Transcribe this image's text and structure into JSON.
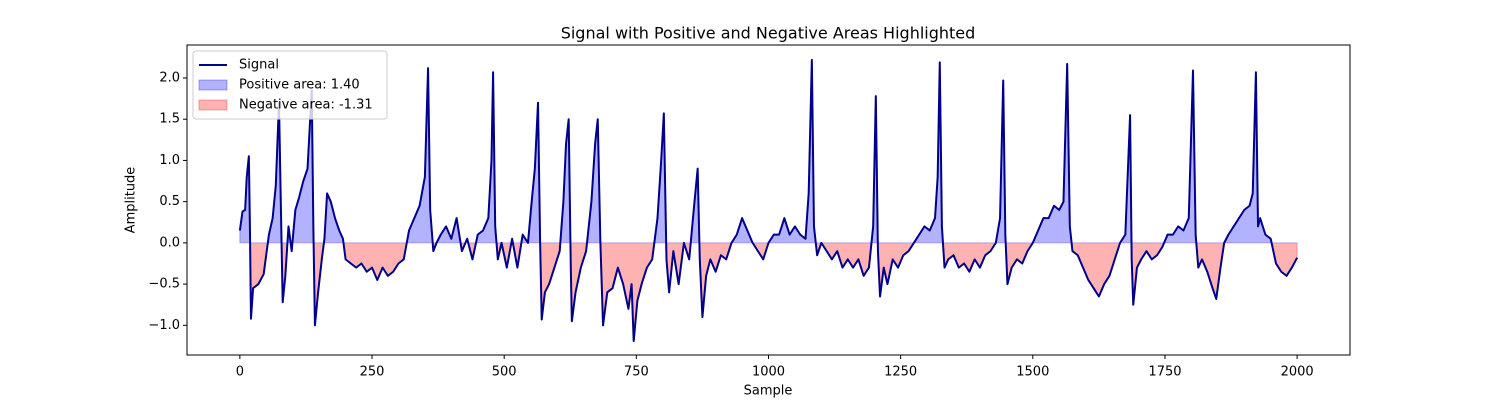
{
  "chart_data": {
    "type": "area-line",
    "title": "Signal with Positive and Negative Areas Highlighted",
    "xlabel": "Sample",
    "ylabel": "Amplitude",
    "xlim": [
      -100,
      2100
    ],
    "ylim": [
      -1.36,
      2.4
    ],
    "xticks": [
      0,
      250,
      500,
      750,
      1000,
      1250,
      1500,
      1750,
      2000
    ],
    "yticks": [
      {
        "value": -1,
        "label": "−1.0"
      },
      {
        "value": -0.5,
        "label": "−0.5"
      },
      {
        "value": 0,
        "label": "0.0"
      },
      {
        "value": 0.5,
        "label": "0.5"
      },
      {
        "value": 1,
        "label": "1.0"
      },
      {
        "value": 1.5,
        "label": "1.5"
      },
      {
        "value": 2,
        "label": "2.0"
      }
    ],
    "legend": "upper left",
    "series": [
      {
        "name": "Signal",
        "color": "#00008b",
        "x": [
          0,
          5,
          10,
          13,
          17,
          19,
          21,
          25,
          35,
          45,
          55,
          62,
          68,
          74,
          78,
          81,
          86,
          92,
          98,
          105,
          112,
          120,
          128,
          133,
          136,
          139,
          142,
          148,
          155,
          160,
          165,
          172,
          180,
          188,
          195,
          200,
          210,
          220,
          230,
          240,
          250,
          260,
          270,
          280,
          290,
          300,
          310,
          320,
          330,
          340,
          350,
          356,
          360,
          366,
          372,
          380,
          390,
          400,
          410,
          420,
          430,
          440,
          450,
          460,
          470,
          476,
          479,
          483,
          488,
          495,
          505,
          515,
          525,
          535,
          545,
          552,
          558,
          564,
          568,
          571,
          577,
          585,
          595,
          605,
          612,
          617,
          622,
          626,
          628,
          635,
          645,
          655,
          665,
          672,
          677,
          682,
          687,
          695,
          705,
          715,
          725,
          735,
          741,
          745,
          752,
          760,
          770,
          780,
          790,
          797,
          802,
          807,
          812,
          820,
          830,
          840,
          850,
          860,
          866,
          870,
          875,
          882,
          890,
          900,
          910,
          920,
          930,
          940,
          950,
          960,
          970,
          980,
          990,
          1000,
          1010,
          1020,
          1030,
          1040,
          1050,
          1060,
          1070,
          1076,
          1082,
          1086,
          1092,
          1100,
          1110,
          1120,
          1130,
          1140,
          1150,
          1160,
          1170,
          1180,
          1190,
          1198,
          1203,
          1207,
          1211,
          1218,
          1225,
          1235,
          1245,
          1255,
          1265,
          1275,
          1285,
          1295,
          1305,
          1315,
          1320,
          1324,
          1328,
          1333,
          1340,
          1350,
          1360,
          1370,
          1380,
          1390,
          1400,
          1410,
          1420,
          1430,
          1438,
          1444,
          1448,
          1452,
          1460,
          1470,
          1480,
          1490,
          1500,
          1510,
          1520,
          1530,
          1540,
          1550,
          1558,
          1565,
          1570,
          1575,
          1585,
          1595,
          1605,
          1615,
          1625,
          1635,
          1645,
          1655,
          1665,
          1675,
          1684,
          1687,
          1690,
          1697,
          1705,
          1715,
          1725,
          1735,
          1745,
          1755,
          1765,
          1775,
          1785,
          1795,
          1803,
          1808,
          1813,
          1820,
          1830,
          1840,
          1847,
          1855,
          1862,
          1870,
          1880,
          1890,
          1900,
          1910,
          1916,
          1922,
          1926,
          1930,
          1940,
          1950,
          1960,
          1970,
          1980,
          1990,
          2000
        ],
        "values": [
          0.15,
          0.38,
          0.4,
          0.8,
          1.05,
          0.2,
          -0.92,
          -0.55,
          -0.5,
          -0.38,
          0.1,
          0.3,
          0.7,
          1.7,
          0.3,
          -0.72,
          -0.4,
          0.2,
          -0.1,
          0.4,
          0.55,
          0.75,
          0.9,
          1.5,
          1.85,
          0.2,
          -1.0,
          -0.6,
          -0.2,
          0.05,
          0.6,
          0.5,
          0.3,
          0.15,
          0.05,
          -0.2,
          -0.25,
          -0.3,
          -0.25,
          -0.35,
          -0.3,
          -0.45,
          -0.3,
          -0.4,
          -0.35,
          -0.25,
          -0.2,
          0.15,
          0.3,
          0.45,
          0.8,
          2.12,
          0.4,
          -0.1,
          0.0,
          0.1,
          0.2,
          0.05,
          0.3,
          -0.1,
          0.05,
          -0.2,
          0.1,
          0.15,
          0.3,
          1.0,
          2.07,
          0.2,
          -0.2,
          0.0,
          -0.3,
          0.05,
          -0.3,
          0.1,
          0.0,
          0.5,
          0.9,
          1.7,
          0.0,
          -0.93,
          -0.6,
          -0.5,
          -0.3,
          -0.1,
          0.5,
          1.2,
          1.5,
          -0.3,
          -0.95,
          -0.6,
          -0.3,
          -0.1,
          0.5,
          1.2,
          1.5,
          0.0,
          -1.0,
          -0.6,
          -0.55,
          -0.3,
          -0.5,
          -0.8,
          -0.5,
          -1.19,
          -0.7,
          -0.5,
          -0.3,
          -0.2,
          0.3,
          1.0,
          1.57,
          -0.2,
          -0.6,
          -0.1,
          -0.5,
          0.0,
          -0.2,
          0.5,
          0.9,
          -0.2,
          -0.9,
          -0.4,
          -0.2,
          -0.35,
          -0.15,
          -0.2,
          0.0,
          0.1,
          0.3,
          0.15,
          0.0,
          -0.1,
          -0.2,
          0.0,
          0.1,
          0.1,
          0.3,
          0.1,
          0.2,
          0.1,
          0.05,
          0.6,
          2.22,
          0.2,
          -0.15,
          0.0,
          -0.1,
          -0.2,
          -0.1,
          -0.3,
          -0.2,
          -0.3,
          -0.2,
          -0.4,
          -0.3,
          0.2,
          1.78,
          -0.1,
          -0.65,
          -0.3,
          -0.5,
          -0.2,
          -0.3,
          -0.15,
          -0.1,
          0.0,
          0.1,
          0.2,
          0.15,
          0.3,
          0.8,
          2.19,
          0.2,
          -0.3,
          -0.2,
          -0.15,
          -0.3,
          -0.25,
          -0.35,
          -0.2,
          -0.3,
          -0.15,
          -0.1,
          0.0,
          0.3,
          1.97,
          0.1,
          -0.5,
          -0.3,
          -0.2,
          -0.25,
          -0.1,
          0.0,
          0.15,
          0.3,
          0.3,
          0.45,
          0.4,
          0.5,
          2.17,
          0.2,
          -0.1,
          -0.15,
          -0.3,
          -0.45,
          -0.55,
          -0.65,
          -0.5,
          -0.4,
          -0.2,
          0.0,
          0.1,
          1.55,
          -0.2,
          -0.75,
          -0.3,
          -0.2,
          -0.1,
          -0.2,
          -0.15,
          -0.05,
          0.1,
          0.1,
          0.2,
          0.15,
          0.3,
          2.09,
          0.1,
          -0.3,
          -0.2,
          -0.35,
          -0.55,
          -0.68,
          -0.3,
          0.0,
          0.1,
          0.2,
          0.3,
          0.4,
          0.45,
          0.6,
          2.07,
          0.2,
          0.3,
          0.1,
          0.05,
          -0.25,
          -0.35,
          -0.4,
          -0.3,
          -0.18
        ]
      }
    ],
    "fills": [
      {
        "name": "Positive area: 1.40",
        "color": "#0000ff",
        "side": "positive"
      },
      {
        "name": "Negative area: -1.31",
        "color": "#ff0000",
        "side": "negative"
      }
    ]
  }
}
